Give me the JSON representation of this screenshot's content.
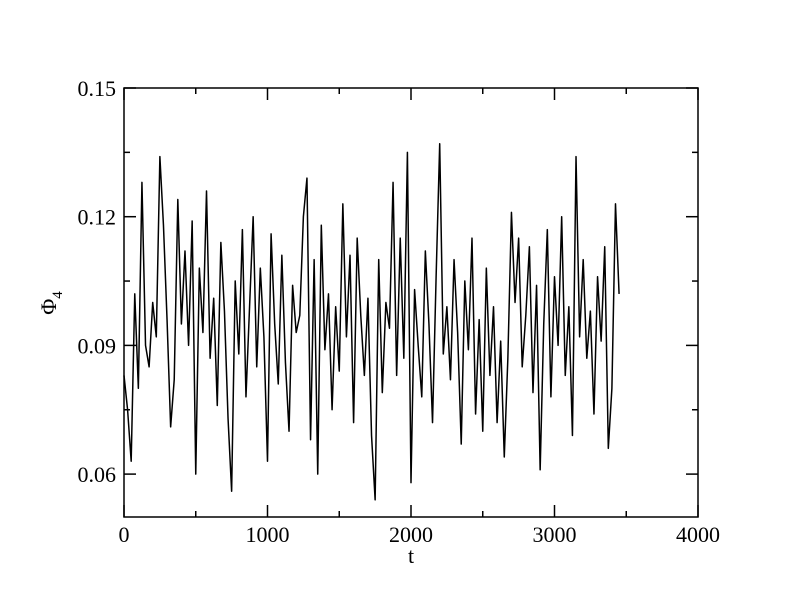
{
  "chart_data": {
    "type": "line",
    "xlabel": "t",
    "ylabel": {
      "text": "Φ",
      "subscript": "4"
    },
    "xlim": [
      0,
      4000
    ],
    "xticks": [
      0,
      1000,
      2000,
      3000,
      4000
    ],
    "xticks_minor": [
      500,
      1500,
      2500,
      3500
    ],
    "ylim": [
      0.05,
      0.15
    ],
    "yticks": [
      0.06,
      0.09,
      0.12,
      0.15
    ],
    "yticks_minor": [
      0.075,
      0.105,
      0.135
    ],
    "series": [
      {
        "color": "#000000",
        "x": [
          0,
          25,
          50,
          75,
          100,
          125,
          150,
          175,
          200,
          225,
          250,
          275,
          300,
          325,
          350,
          375,
          400,
          425,
          450,
          475,
          500,
          525,
          550,
          575,
          600,
          625,
          650,
          675,
          700,
          725,
          750,
          775,
          800,
          825,
          850,
          875,
          900,
          925,
          950,
          975,
          1000,
          1025,
          1050,
          1075,
          1100,
          1125,
          1150,
          1175,
          1200,
          1225,
          1250,
          1275,
          1300,
          1325,
          1350,
          1375,
          1400,
          1425,
          1450,
          1475,
          1500,
          1525,
          1550,
          1575,
          1600,
          1625,
          1650,
          1675,
          1700,
          1725,
          1750,
          1775,
          1800,
          1825,
          1850,
          1875,
          1900,
          1925,
          1950,
          1975,
          2000,
          2025,
          2050,
          2075,
          2100,
          2125,
          2150,
          2175,
          2200,
          2225,
          2250,
          2275,
          2300,
          2325,
          2350,
          2375,
          2400,
          2425,
          2450,
          2475,
          2500,
          2525,
          2550,
          2575,
          2600,
          2625,
          2650,
          2675,
          2700,
          2725,
          2750,
          2775,
          2800,
          2825,
          2850,
          2875,
          2900,
          2925,
          2950,
          2975,
          3000,
          3025,
          3050,
          3075,
          3100,
          3125,
          3150,
          3175,
          3200,
          3225,
          3250,
          3275,
          3300,
          3325,
          3350,
          3375,
          3400,
          3425,
          3450
        ],
        "values": [
          0.083,
          0.075,
          0.063,
          0.102,
          0.08,
          0.128,
          0.09,
          0.085,
          0.1,
          0.092,
          0.134,
          0.118,
          0.096,
          0.071,
          0.082,
          0.124,
          0.095,
          0.112,
          0.09,
          0.119,
          0.06,
          0.108,
          0.093,
          0.126,
          0.087,
          0.101,
          0.076,
          0.114,
          0.098,
          0.073,
          0.056,
          0.105,
          0.088,
          0.117,
          0.078,
          0.099,
          0.12,
          0.085,
          0.108,
          0.092,
          0.063,
          0.116,
          0.095,
          0.081,
          0.111,
          0.086,
          0.07,
          0.104,
          0.093,
          0.097,
          0.12,
          0.129,
          0.068,
          0.11,
          0.06,
          0.118,
          0.089,
          0.102,
          0.075,
          0.099,
          0.084,
          0.123,
          0.092,
          0.111,
          0.072,
          0.115,
          0.097,
          0.083,
          0.101,
          0.069,
          0.054,
          0.11,
          0.079,
          0.1,
          0.094,
          0.128,
          0.083,
          0.115,
          0.087,
          0.135,
          0.058,
          0.103,
          0.09,
          0.078,
          0.112,
          0.095,
          0.072,
          0.106,
          0.137,
          0.088,
          0.099,
          0.082,
          0.11,
          0.093,
          0.067,
          0.105,
          0.089,
          0.115,
          0.074,
          0.096,
          0.07,
          0.108,
          0.083,
          0.099,
          0.072,
          0.091,
          0.064,
          0.087,
          0.121,
          0.1,
          0.115,
          0.085,
          0.097,
          0.113,
          0.079,
          0.104,
          0.061,
          0.095,
          0.117,
          0.078,
          0.106,
          0.09,
          0.12,
          0.083,
          0.099,
          0.069,
          0.134,
          0.092,
          0.11,
          0.087,
          0.098,
          0.074,
          0.106,
          0.091,
          0.113,
          0.066,
          0.08,
          0.123,
          0.102
        ]
      }
    ]
  }
}
